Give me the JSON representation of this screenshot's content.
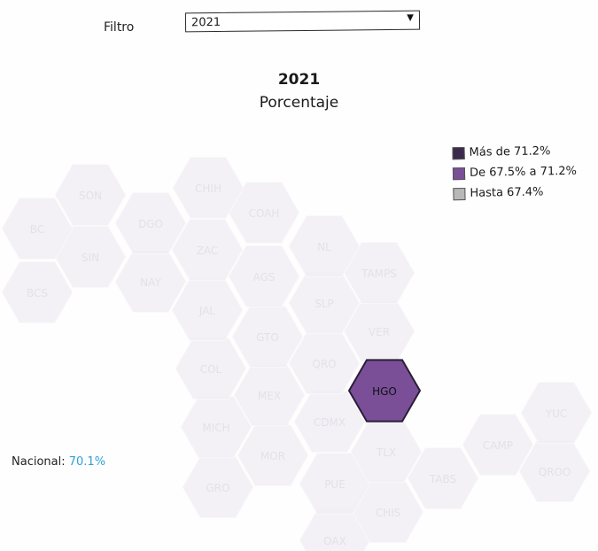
{
  "filter": {
    "label": "Filtro",
    "value": "2021"
  },
  "title": "2021",
  "subtitle": "Porcentaje",
  "legend": [
    {
      "label": "Más de 71.2%",
      "color": "#3a2a4c"
    },
    {
      "label": "De 67.5% a 71.2%",
      "color": "#7a4f98"
    },
    {
      "label": "Hasta 67.4%",
      "color": "#b8b8b8"
    }
  ],
  "national": {
    "label": "Nacional:",
    "value": "70.1%"
  },
  "states": [
    {
      "code": "BC",
      "highlighted": false
    },
    {
      "code": "SON",
      "highlighted": false
    },
    {
      "code": "CHIH",
      "highlighted": false
    },
    {
      "code": "BCS",
      "highlighted": false
    },
    {
      "code": "SIN",
      "highlighted": false
    },
    {
      "code": "DGO",
      "highlighted": false
    },
    {
      "code": "COAH",
      "highlighted": false
    },
    {
      "code": "NL",
      "highlighted": false
    },
    {
      "code": "ZAC",
      "highlighted": false
    },
    {
      "code": "NAY",
      "highlighted": false
    },
    {
      "code": "AGS",
      "highlighted": false
    },
    {
      "code": "TAMPS",
      "highlighted": false
    },
    {
      "code": "SLP",
      "highlighted": false
    },
    {
      "code": "JAL",
      "highlighted": false
    },
    {
      "code": "GTO",
      "highlighted": false
    },
    {
      "code": "VER",
      "highlighted": false
    },
    {
      "code": "COL",
      "highlighted": false
    },
    {
      "code": "QRO",
      "highlighted": false
    },
    {
      "code": "HGO",
      "highlighted": true
    },
    {
      "code": "MEX",
      "highlighted": false
    },
    {
      "code": "CDMX",
      "highlighted": false
    },
    {
      "code": "YUC",
      "highlighted": false
    },
    {
      "code": "MICH",
      "highlighted": false
    },
    {
      "code": "MOR",
      "highlighted": false
    },
    {
      "code": "TLX",
      "highlighted": false
    },
    {
      "code": "CAMP",
      "highlighted": false
    },
    {
      "code": "QROO",
      "highlighted": false
    },
    {
      "code": "GRO",
      "highlighted": false
    },
    {
      "code": "PUE",
      "highlighted": false
    },
    {
      "code": "TABS",
      "highlighted": false
    },
    {
      "code": "CHIS",
      "highlighted": false
    },
    {
      "code": "OAX",
      "highlighted": false
    }
  ]
}
